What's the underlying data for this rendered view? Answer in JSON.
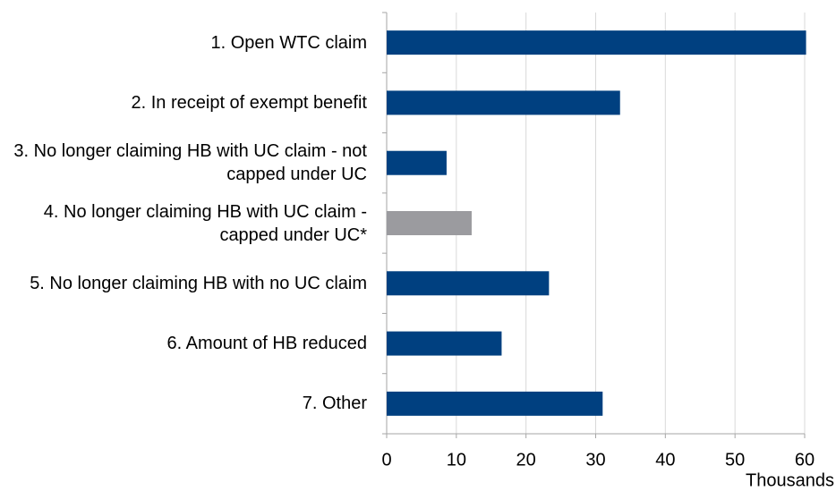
{
  "chart_data": {
    "type": "bar",
    "orientation": "horizontal",
    "categories": [
      "1. Open WTC claim",
      "2. In receipt of exempt benefit",
      "3. No longer claiming HB with UC claim - not capped under UC",
      "4. No longer claiming HB with UC claim - capped under UC*",
      "5. No longer claiming HB with no UC claim",
      "6. Amount of HB reduced",
      "7. Other"
    ],
    "values": [
      60.2,
      33.5,
      8.6,
      12.2,
      23.3,
      16.5,
      31.0
    ],
    "colors": [
      "#004080",
      "#004080",
      "#004080",
      "#9b9b9f",
      "#004080",
      "#004080",
      "#004080"
    ],
    "xlabel": "Thousands",
    "xlim": [
      0,
      60
    ],
    "xticks": [
      0,
      10,
      20,
      30,
      40,
      50,
      60
    ],
    "grid": true
  }
}
